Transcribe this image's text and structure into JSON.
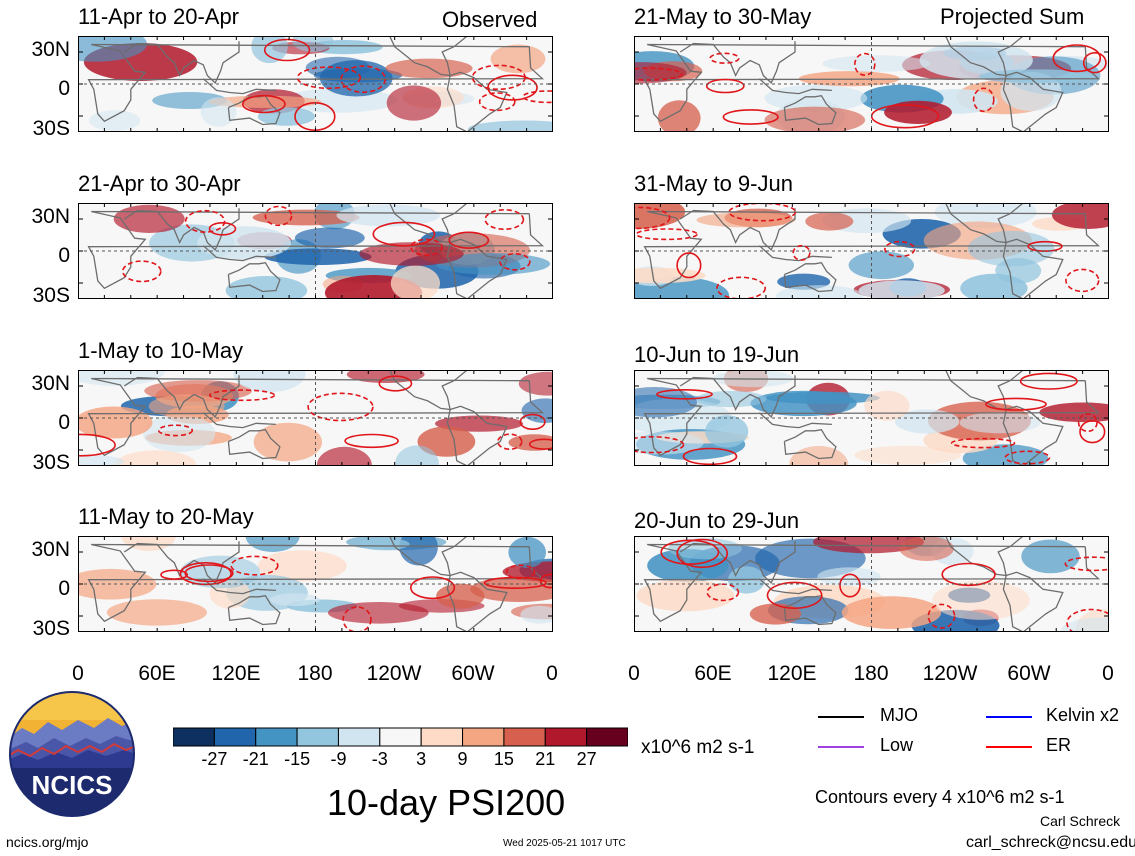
{
  "header": {
    "observed_label": "Observed",
    "projected_label": "Projected Sum"
  },
  "chart_data": {
    "type": "heatmap",
    "title": "10-day PSI200",
    "units": "x10^6 m2 s-1",
    "y_ticks": [
      "30N",
      "0",
      "30S"
    ],
    "x_ticks": [
      "0",
      "60E",
      "120E",
      "180",
      "120W",
      "60W",
      "0"
    ],
    "panels": [
      {
        "title": "11-Apr to 20-Apr",
        "group": "Observed"
      },
      {
        "title": "21-Apr to 30-Apr",
        "group": "Observed"
      },
      {
        "title": "1-May to 10-May",
        "group": "Observed"
      },
      {
        "title": "11-May to 20-May",
        "group": "Observed"
      },
      {
        "title": "21-May to 30-May",
        "group": "Projected Sum"
      },
      {
        "title": "31-May to 9-Jun",
        "group": "Projected Sum"
      },
      {
        "title": "10-Jun to 19-Jun",
        "group": "Projected Sum"
      },
      {
        "title": "20-Jun to 29-Jun",
        "group": "Projected Sum"
      }
    ],
    "colorbar": {
      "labels": [
        "-27",
        "-21",
        "-15",
        "-9",
        "-3",
        "3",
        "9",
        "15",
        "21",
        "27"
      ],
      "colors": [
        "#0d3060",
        "#2166ac",
        "#4393c3",
        "#92c5de",
        "#d1e5f0",
        "#f7f7f7",
        "#fddbc7",
        "#f4a582",
        "#d6604d",
        "#b2182b",
        "#67001f"
      ]
    },
    "legend": [
      {
        "label": "MJO",
        "color": "#000000"
      },
      {
        "label": "Kelvin x2",
        "color": "#0000ff"
      },
      {
        "label": "Low",
        "color": "#a040e0"
      },
      {
        "label": "ER",
        "color": "#ff0000"
      }
    ],
    "contour_note": "Contours every 4 x10^6 m2 s-1"
  },
  "footer": {
    "logo_text": "NCICS",
    "site": "ncics.org/mjo",
    "timestamp": "Wed 2025-05-21 1017 UTC",
    "author": "Carl Schreck",
    "email": "carl_schreck@ncsu.edu"
  }
}
